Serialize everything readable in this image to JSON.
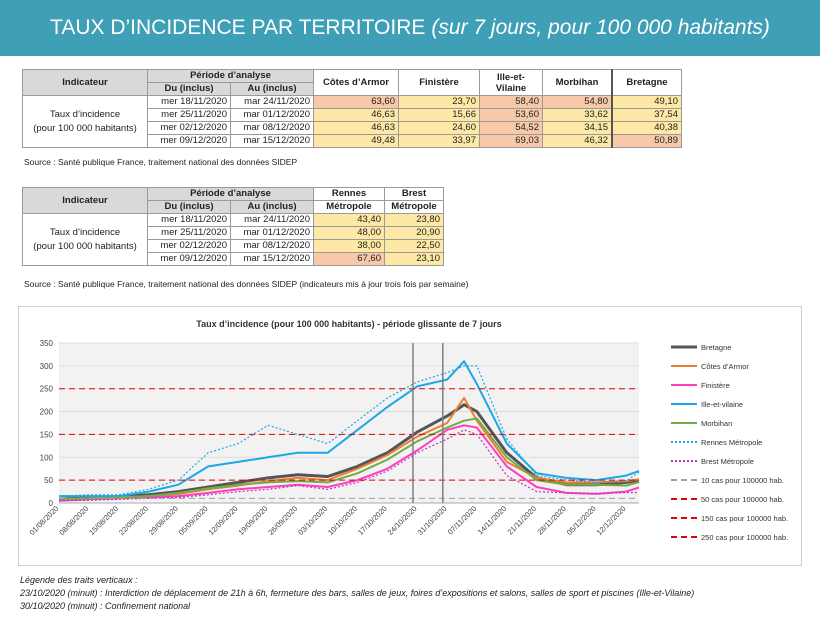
{
  "banner": {
    "title": "TAUX D’INCIDENCE PAR TERRITOIRE",
    "subtitle": "(sur 7 jours, pour 100 000 habitants)"
  },
  "table1": {
    "h_indicateur": "Indicateur",
    "h_periode": "Période d’analyse",
    "h_du": "Du (inclus)",
    "h_au": "Au (inclus)",
    "cols": [
      "Côtes d’Armor",
      "Finistère",
      "Ille-et-Vilaine",
      "Morbihan",
      "Bretagne"
    ],
    "label1": "Taux d’incidence",
    "label2": "(pour 100 000 habitants)",
    "rows": [
      {
        "du": "mer 18/11/2020",
        "au": "mar 24/11/2020",
        "v": [
          "63,60",
          "23,70",
          "58,40",
          "54,80",
          "49,10"
        ]
      },
      {
        "du": "mer 25/11/2020",
        "au": "mar 01/12/2020",
        "v": [
          "46,63",
          "15,66",
          "53,60",
          "33,62",
          "37,54"
        ]
      },
      {
        "du": "mer 02/12/2020",
        "au": "mar 08/12/2020",
        "v": [
          "46,63",
          "24,60",
          "54,52",
          "34,15",
          "40,38"
        ]
      },
      {
        "du": "mer 09/12/2020",
        "au": "mar 15/12/2020",
        "v": [
          "49,48",
          "33,97",
          "69,03",
          "46,32",
          "50,89"
        ]
      }
    ],
    "source": "Source  : Santé publique France, traitement national des données SIDEP"
  },
  "table2": {
    "h_indicateur": "Indicateur",
    "h_periode": "Période d’analyse",
    "h_du": "Du (inclus)",
    "h_au": "Au (inclus)",
    "cols_top": [
      "Rennes",
      "Brest"
    ],
    "cols_bottom": [
      "Métropole",
      "Métropole"
    ],
    "label1": "Taux d’incidence",
    "label2": "(pour 100 000 habitants)",
    "rows": [
      {
        "du": "mer 18/11/2020",
        "au": "mar 24/11/2020",
        "v": [
          "43,40",
          "23,80"
        ]
      },
      {
        "du": "mer 25/11/2020",
        "au": "mar 01/12/2020",
        "v": [
          "48,00",
          "20,90"
        ]
      },
      {
        "du": "mer 02/12/2020",
        "au": "mar 08/12/2020",
        "v": [
          "38,00",
          "22,50"
        ]
      },
      {
        "du": "mer 09/12/2020",
        "au": "mar 15/12/2020",
        "v": [
          "67,60",
          "23,10"
        ]
      }
    ],
    "source": "Source  : Santé publique France, traitement national des données SIDEP (indicateurs mis à jour trois fois par semaine)"
  },
  "notes": {
    "title": "Légende des traits verticaux :",
    "line1": "23/10/2020 (minuit) : Interdiction de déplacement de 21h à 6h, fermeture des bars, salles de jeux, foires d’expositions et salons, salles de sport et piscines (Ille-et-Vilaine)",
    "line2": "30/10/2020 (minuit) : Confinement national"
  },
  "colors": {
    "bretagne": "#555555",
    "cotes": "#ed7d31",
    "finistere": "#ff3fbf",
    "ille": "#1da7e6",
    "morbihan": "#70ad47",
    "rennes": "#1da7e6",
    "brest": "#c030c0",
    "ref10": "#a0a0a0",
    "ref": "#e00000"
  },
  "chart_data": {
    "type": "line",
    "title": "Taux d’incidence (pour 100 000 habitants) - période glissante de 7 jours",
    "ylim": [
      0,
      350
    ],
    "yticks": [
      0,
      50,
      100,
      150,
      200,
      250,
      300,
      350
    ],
    "xticks": [
      "01/08/2020",
      "08/08/2020",
      "15/08/2020",
      "22/08/2020",
      "29/08/2020",
      "05/09/2020",
      "12/09/2020",
      "19/09/2020",
      "26/09/2020",
      "03/10/2020",
      "10/10/2020",
      "17/10/2020",
      "24/10/2020",
      "31/10/2020",
      "07/11/2020",
      "14/11/2020",
      "21/11/2020",
      "28/11/2020",
      "05/12/2020",
      "12/12/2020"
    ],
    "x": [
      "01/08",
      "08/08",
      "15/08",
      "22/08",
      "29/08",
      "05/09",
      "12/09",
      "19/09",
      "26/09",
      "03/10",
      "10/10",
      "17/10",
      "24/10",
      "31/10",
      "04/11",
      "07/11",
      "14/11",
      "21/11",
      "28/11",
      "05/12",
      "12/12",
      "15/12"
    ],
    "vlines": [
      "23/10/2020",
      "30/10/2020"
    ],
    "grid": true,
    "legend_position": "right",
    "series": [
      {
        "name": "Bretagne",
        "key": "bretagne",
        "dash": "none",
        "width": 3,
        "values": [
          8,
          12,
          14,
          18,
          25,
          35,
          45,
          55,
          62,
          58,
          80,
          110,
          155,
          190,
          215,
          200,
          110,
          55,
          40,
          40,
          45,
          50
        ]
      },
      {
        "name": "Côtes d’Armor",
        "key": "cotes",
        "dash": "none",
        "width": 2,
        "values": [
          8,
          10,
          12,
          15,
          20,
          30,
          38,
          48,
          55,
          50,
          75,
          105,
          145,
          175,
          230,
          180,
          90,
          55,
          45,
          45,
          48,
          52
        ]
      },
      {
        "name": "Finistère",
        "key": "finistere",
        "dash": "none",
        "width": 2,
        "values": [
          5,
          8,
          10,
          12,
          15,
          22,
          30,
          35,
          40,
          35,
          50,
          75,
          115,
          160,
          170,
          165,
          80,
          35,
          22,
          20,
          25,
          34
        ]
      },
      {
        "name": "Ille-et-vilaine",
        "key": "ille",
        "dash": "none",
        "width": 2,
        "values": [
          15,
          15,
          15,
          25,
          40,
          80,
          90,
          100,
          110,
          110,
          160,
          210,
          255,
          270,
          310,
          260,
          130,
          65,
          55,
          50,
          60,
          70
        ]
      },
      {
        "name": "Morbihan",
        "key": "morbihan",
        "dash": "none",
        "width": 2,
        "values": [
          8,
          10,
          12,
          15,
          22,
          32,
          40,
          45,
          48,
          45,
          65,
          95,
          135,
          165,
          180,
          185,
          100,
          50,
          40,
          40,
          38,
          46
        ]
      },
      {
        "name": "Rennes Métropole",
        "key": "rennes",
        "dash": "2,2",
        "width": 1.2,
        "values": [
          15,
          18,
          18,
          30,
          50,
          110,
          130,
          170,
          150,
          130,
          180,
          230,
          265,
          285,
          300,
          300,
          140,
          60,
          50,
          45,
          48,
          68
        ]
      },
      {
        "name": "Brest Métropole",
        "key": "brest",
        "dash": "2,2",
        "width": 1.2,
        "values": [
          5,
          6,
          8,
          10,
          12,
          18,
          25,
          30,
          38,
          30,
          45,
          70,
          110,
          140,
          160,
          150,
          60,
          25,
          22,
          21,
          23,
          23
        ]
      },
      {
        "name": "10 cas pour 100000 hab.",
        "key": "ref10",
        "dash": "6,4",
        "width": 1,
        "values": [
          10,
          10,
          10,
          10,
          10,
          10,
          10,
          10,
          10,
          10,
          10,
          10,
          10,
          10,
          10,
          10,
          10,
          10,
          10,
          10,
          10,
          10
        ]
      },
      {
        "name": "50 cas pour 100000 hab.",
        "key": "ref",
        "dash": "6,4",
        "width": 1,
        "values": [
          50,
          50,
          50,
          50,
          50,
          50,
          50,
          50,
          50,
          50,
          50,
          50,
          50,
          50,
          50,
          50,
          50,
          50,
          50,
          50,
          50,
          50
        ]
      },
      {
        "name": "150 cas pour 100000 hab.",
        "key": "ref",
        "dash": "6,4",
        "width": 1,
        "values": [
          150,
          150,
          150,
          150,
          150,
          150,
          150,
          150,
          150,
          150,
          150,
          150,
          150,
          150,
          150,
          150,
          150,
          150,
          150,
          150,
          150,
          150
        ]
      },
      {
        "name": "250 cas pour 100000 hab.",
        "key": "ref",
        "dash": "6,4",
        "width": 1,
        "values": [
          250,
          250,
          250,
          250,
          250,
          250,
          250,
          250,
          250,
          250,
          250,
          250,
          250,
          250,
          250,
          250,
          250,
          250,
          250,
          250,
          250,
          250
        ]
      }
    ]
  }
}
